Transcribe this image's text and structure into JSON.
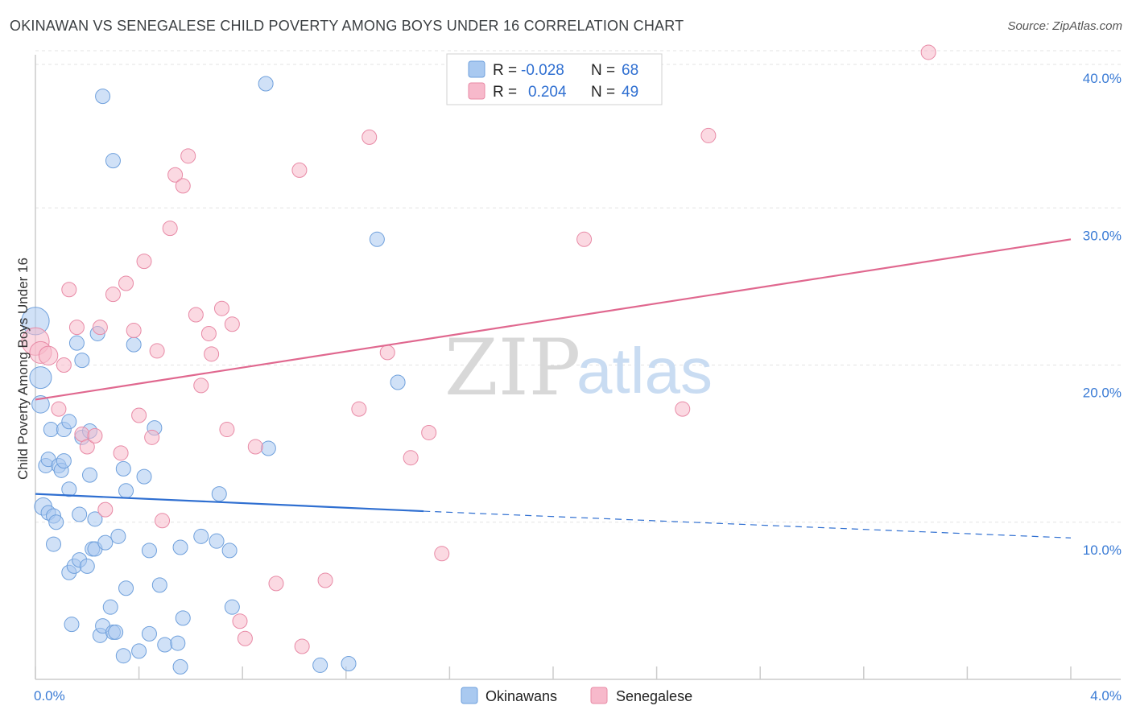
{
  "title": "OKINAWAN VS SENEGALESE CHILD POVERTY AMONG BOYS UNDER 16 CORRELATION CHART",
  "source": "Source: ZipAtlas.com",
  "watermark": {
    "zip": "ZIP",
    "atlas": "atlas"
  },
  "legend": {
    "rows": [
      {
        "r_label": "R =",
        "r_value": "-0.028",
        "n_label": "N =",
        "n_value": "68",
        "color": "#a9c9f0"
      },
      {
        "r_label": "R =",
        "r_value": "0.204",
        "n_label": "N =",
        "n_value": "49",
        "color": "#f7b9cb"
      }
    ]
  },
  "bottom_legend": [
    {
      "label": "Okinawans",
      "color": "#a9c9f0"
    },
    {
      "label": "Senegalese",
      "color": "#f7b9cb"
    }
  ],
  "chart_data": {
    "type": "scatter",
    "title": "OKINAWAN VS SENEGALESE CHILD POVERTY AMONG BOYS UNDER 16 CORRELATION CHART",
    "xlabel": "",
    "ylabel": "Child Poverty Among Boys Under 16",
    "xlim": [
      0.0,
      4.0
    ],
    "ylim": [
      0.0,
      40.0
    ],
    "x_tick_labels": [
      "0.0%",
      "4.0%"
    ],
    "y_ticks": [
      10,
      20,
      30,
      40
    ],
    "y_tick_labels": [
      "10.0%",
      "20.0%",
      "30.0%",
      "40.0%"
    ],
    "grid": true,
    "legend_position": "top-center",
    "series": [
      {
        "name": "Okinawans",
        "color": "#a9c9f0",
        "stroke": "#6fa0dc",
        "trend": {
          "x0": 0.0,
          "y0": 11.8,
          "x1": 1.5,
          "y1": 10.7,
          "x_end": 4.0,
          "y_end": 9.0
        },
        "points": [
          [
            0.0,
            22.8,
            1.9
          ],
          [
            0.02,
            19.2,
            1.5
          ],
          [
            0.02,
            17.5,
            1.2
          ],
          [
            0.03,
            11.0,
            1.2
          ],
          [
            0.04,
            13.6,
            1.0
          ],
          [
            0.05,
            14.0,
            1.0
          ],
          [
            0.05,
            10.6,
            1.0
          ],
          [
            0.06,
            15.9,
            1.0
          ],
          [
            0.07,
            10.4,
            1.0
          ],
          [
            0.07,
            8.6,
            1.0
          ],
          [
            0.08,
            10.0,
            1.0
          ],
          [
            0.09,
            13.6,
            1.0
          ],
          [
            0.1,
            13.3,
            1.0
          ],
          [
            0.11,
            13.9,
            1.0
          ],
          [
            0.11,
            15.9,
            1.0
          ],
          [
            0.13,
            16.4,
            1.0
          ],
          [
            0.13,
            12.1,
            1.0
          ],
          [
            0.13,
            6.8,
            1.0
          ],
          [
            0.14,
            3.5,
            1.0
          ],
          [
            0.15,
            7.2,
            1.0
          ],
          [
            0.16,
            21.4,
            1.0
          ],
          [
            0.17,
            10.5,
            1.0
          ],
          [
            0.17,
            7.6,
            1.0
          ],
          [
            0.18,
            20.3,
            1.0
          ],
          [
            0.18,
            15.4,
            1.0
          ],
          [
            0.2,
            7.2,
            1.0
          ],
          [
            0.21,
            13.0,
            1.0
          ],
          [
            0.21,
            15.8,
            1.0
          ],
          [
            0.22,
            8.3,
            1.0
          ],
          [
            0.23,
            10.2,
            1.0
          ],
          [
            0.23,
            8.3,
            1.0
          ],
          [
            0.24,
            22.0,
            1.0
          ],
          [
            0.25,
            2.8,
            1.0
          ],
          [
            0.26,
            3.4,
            1.0
          ],
          [
            0.26,
            37.1,
            1.0
          ],
          [
            0.27,
            8.7,
            1.0
          ],
          [
            0.29,
            4.6,
            1.0
          ],
          [
            0.3,
            3.0,
            1.0
          ],
          [
            0.3,
            33.0,
            1.0
          ],
          [
            0.31,
            3.0,
            1.0
          ],
          [
            0.32,
            9.1,
            1.0
          ],
          [
            0.34,
            1.5,
            1.0
          ],
          [
            0.34,
            13.4,
            1.0
          ],
          [
            0.35,
            12.0,
            1.0
          ],
          [
            0.35,
            5.8,
            1.0
          ],
          [
            0.38,
            21.3,
            1.0
          ],
          [
            0.4,
            1.8,
            1.0
          ],
          [
            0.42,
            12.9,
            1.0
          ],
          [
            0.44,
            8.2,
            1.0
          ],
          [
            0.44,
            2.9,
            1.0
          ],
          [
            0.46,
            16.0,
            1.0
          ],
          [
            0.48,
            6.0,
            1.0
          ],
          [
            0.5,
            2.2,
            1.0
          ],
          [
            0.55,
            2.3,
            1.0
          ],
          [
            0.56,
            8.4,
            1.0
          ],
          [
            0.56,
            0.8,
            1.0
          ],
          [
            0.57,
            3.9,
            1.0
          ],
          [
            0.64,
            9.1,
            1.0
          ],
          [
            0.7,
            8.8,
            1.0
          ],
          [
            0.71,
            11.8,
            1.0
          ],
          [
            0.75,
            8.2,
            1.0
          ],
          [
            0.76,
            4.6,
            1.0
          ],
          [
            0.89,
            37.9,
            1.0
          ],
          [
            0.9,
            14.7,
            1.0
          ],
          [
            1.1,
            0.9,
            1.0
          ],
          [
            1.21,
            1.0,
            1.0
          ],
          [
            1.32,
            28.0,
            1.0
          ],
          [
            1.4,
            18.9,
            1.0
          ]
        ]
      },
      {
        "name": "Senegalese",
        "color": "#f7b9cb",
        "stroke": "#e88aa6",
        "trend": {
          "x0": 0.0,
          "y0": 17.8,
          "x1": 4.0,
          "y1": 28.0
        },
        "points": [
          [
            0.0,
            21.5,
            1.9
          ],
          [
            0.02,
            20.8,
            1.5
          ],
          [
            0.05,
            20.6,
            1.3
          ],
          [
            0.09,
            17.2,
            1.0
          ],
          [
            0.11,
            20.0,
            1.0
          ],
          [
            0.13,
            24.8,
            1.0
          ],
          [
            0.16,
            22.4,
            1.0
          ],
          [
            0.18,
            15.6,
            1.0
          ],
          [
            0.2,
            14.8,
            1.0
          ],
          [
            0.23,
            15.5,
            1.0
          ],
          [
            0.25,
            22.4,
            1.0
          ],
          [
            0.27,
            10.8,
            1.0
          ],
          [
            0.3,
            24.5,
            1.0
          ],
          [
            0.33,
            14.4,
            1.0
          ],
          [
            0.35,
            25.2,
            1.0
          ],
          [
            0.38,
            22.2,
            1.0
          ],
          [
            0.4,
            16.8,
            1.0
          ],
          [
            0.42,
            26.6,
            1.0
          ],
          [
            0.45,
            15.4,
            1.0
          ],
          [
            0.47,
            20.9,
            1.0
          ],
          [
            0.49,
            10.1,
            1.0
          ],
          [
            0.52,
            28.7,
            1.0
          ],
          [
            0.54,
            32.1,
            1.0
          ],
          [
            0.57,
            31.4,
            1.0
          ],
          [
            0.59,
            33.3,
            1.0
          ],
          [
            0.62,
            23.2,
            1.0
          ],
          [
            0.64,
            18.7,
            1.0
          ],
          [
            0.67,
            22.0,
            1.0
          ],
          [
            0.68,
            20.7,
            1.0
          ],
          [
            0.72,
            23.6,
            1.0
          ],
          [
            0.74,
            15.9,
            1.0
          ],
          [
            0.76,
            22.6,
            1.0
          ],
          [
            0.79,
            3.7,
            1.0
          ],
          [
            0.81,
            2.6,
            1.0
          ],
          [
            0.85,
            14.8,
            1.0
          ],
          [
            0.93,
            6.1,
            1.0
          ],
          [
            1.02,
            32.4,
            1.0
          ],
          [
            1.03,
            2.1,
            1.0
          ],
          [
            1.12,
            6.3,
            1.0
          ],
          [
            1.25,
            17.2,
            1.0
          ],
          [
            1.29,
            34.5,
            1.0
          ],
          [
            1.36,
            20.8,
            1.0
          ],
          [
            1.45,
            14.1,
            1.0
          ],
          [
            1.52,
            15.7,
            1.0
          ],
          [
            1.57,
            8.0,
            1.0
          ],
          [
            2.12,
            28.0,
            1.0
          ],
          [
            2.5,
            17.2,
            1.0
          ],
          [
            2.6,
            34.6,
            1.0
          ],
          [
            3.45,
            39.9,
            1.0
          ]
        ]
      }
    ]
  }
}
